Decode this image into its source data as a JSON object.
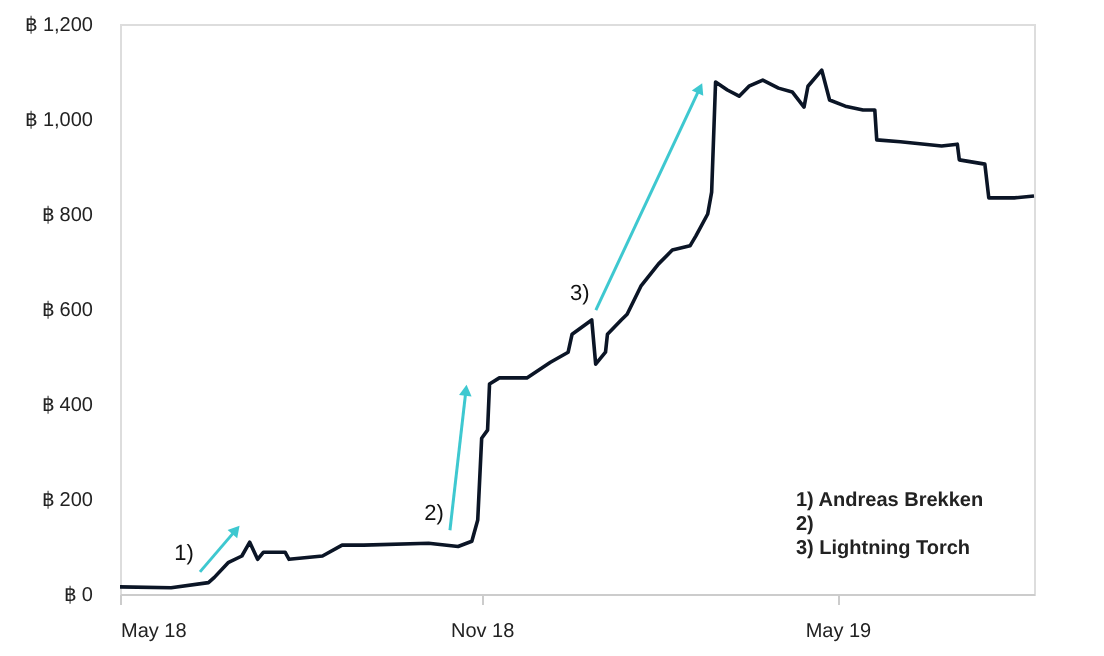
{
  "chart_data": {
    "type": "line",
    "x": [
      "2018-05-01",
      "2018-05-27",
      "2018-06-15",
      "2018-06-18",
      "2018-06-25",
      "2018-07-02",
      "2018-07-06",
      "2018-07-10",
      "2018-07-13",
      "2018-07-24",
      "2018-07-26",
      "2018-08-12",
      "2018-08-22",
      "2018-09-02",
      "2018-10-05",
      "2018-10-20",
      "2018-10-27",
      "2018-10-30",
      "2018-11-01",
      "2018-11-04",
      "2018-11-05",
      "2018-11-10",
      "2018-11-24",
      "2018-12-06",
      "2018-12-15",
      "2018-12-17",
      "2018-12-27",
      "2018-12-29",
      "2019-01-03",
      "2019-01-04",
      "2019-01-11",
      "2019-01-14",
      "2019-01-21",
      "2019-01-30",
      "2019-02-06",
      "2019-02-15",
      "2019-02-18",
      "2019-02-24",
      "2019-02-26",
      "2019-02-28",
      "2019-03-06",
      "2019-03-12",
      "2019-03-17",
      "2019-03-24",
      "2019-04-01",
      "2019-04-08",
      "2019-04-14",
      "2019-04-16",
      "2019-04-23",
      "2019-04-27",
      "2019-05-05",
      "2019-05-14",
      "2019-05-20",
      "2019-05-21",
      "2019-06-02",
      "2019-06-23",
      "2019-07-01",
      "2019-07-02",
      "2019-07-15",
      "2019-07-17",
      "2019-07-30",
      "2019-08-09"
    ],
    "series": [
      {
        "color": "#0b1526",
        "values": [
          15,
          13,
          24,
          35,
          66,
          80,
          109,
          73,
          88,
          88,
          73,
          80,
          103,
          103,
          107,
          100,
          111,
          156,
          328,
          345,
          442,
          455,
          455,
          488,
          509,
          547,
          577,
          484,
          509,
          547,
          577,
          589,
          648,
          695,
          724,
          733,
          754,
          800,
          846,
          1078,
          1061,
          1048,
          1069,
          1082,
          1065,
          1057,
          1025,
          1069,
          1103,
          1040,
          1027,
          1019,
          1019,
          956,
          952,
          943,
          947,
          914,
          905,
          834,
          834,
          838
        ]
      }
    ],
    "xlim": [
      "2018-05-01",
      "2019-08-09"
    ],
    "xticks": [
      {
        "value": "2018-05-01",
        "label": "May 18"
      },
      {
        "value": "2018-11-01",
        "label": "Nov 18"
      },
      {
        "value": "2019-05-01",
        "label": "May 19"
      }
    ],
    "ylim": [
      0,
      1200
    ],
    "yticks": [
      {
        "value": 0,
        "label": "฿ 0"
      },
      {
        "value": 200,
        "label": "฿ 200"
      },
      {
        "value": 400,
        "label": "฿ 400"
      },
      {
        "value": 600,
        "label": "฿ 600"
      },
      {
        "value": 800,
        "label": "฿ 800"
      },
      {
        "value": 1000,
        "label": "฿ 1,000"
      },
      {
        "value": 1200,
        "label": "฿ 1,200"
      }
    ],
    "grid": false,
    "marker": "none",
    "line_style": "solid",
    "annotations": [
      {
        "text": "1)",
        "x": "2018-06-29",
        "y": 135
      },
      {
        "text": "2)",
        "x": "2018-10-24",
        "y": 429
      },
      {
        "text": "3)",
        "x": "2019-02-20",
        "y": 1065
      },
      "1)        Andreas Brekken",
      "2)",
      "3)        Lightning Torch"
    ]
  }
}
